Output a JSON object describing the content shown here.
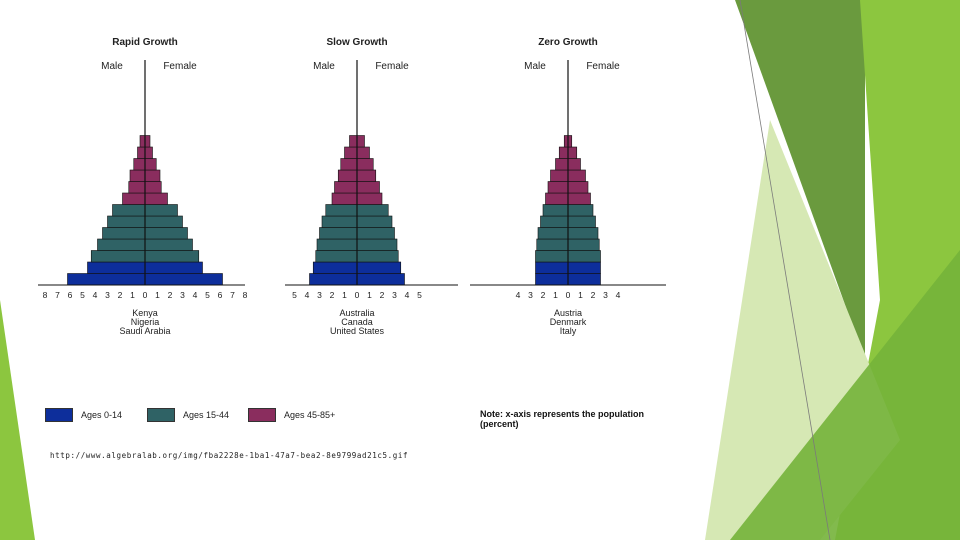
{
  "chart_data": [
    {
      "type": "bar",
      "title": "Rapid Growth",
      "left_label": "Male",
      "right_label": "Female",
      "country_labels": [
        "Kenya",
        "Nigeria",
        "Saudi Arabia"
      ],
      "xlim": [
        -8,
        8
      ],
      "xticks": [
        "8",
        "7",
        "6",
        "5",
        "4",
        "3",
        "2",
        "1",
        "0",
        "1",
        "2",
        "3",
        "4",
        "5",
        "6",
        "7",
        "8"
      ],
      "series": [
        {
          "name": "Male",
          "values": [
            6.2,
            4.6,
            4.3,
            3.8,
            3.4,
            3.0,
            2.6,
            1.8,
            1.3,
            1.2,
            0.9,
            0.6,
            0.4
          ]
        },
        {
          "name": "Female",
          "values": [
            6.2,
            4.6,
            4.3,
            3.8,
            3.4,
            3.0,
            2.6,
            1.8,
            1.3,
            1.2,
            0.9,
            0.6,
            0.4
          ]
        }
      ]
    },
    {
      "type": "bar",
      "title": "Slow Growth",
      "left_label": "Male",
      "right_label": "Female",
      "country_labels": [
        "Australia",
        "Canada",
        "United States"
      ],
      "xlim": [
        -5,
        5
      ],
      "xticks": [
        "5",
        "4",
        "3",
        "2",
        "1",
        "0",
        "1",
        "2",
        "3",
        "4",
        "5"
      ],
      "series": [
        {
          "name": "Male",
          "values": [
            3.8,
            3.5,
            3.3,
            3.2,
            3.0,
            2.8,
            2.5,
            2.0,
            1.8,
            1.5,
            1.3,
            1.0,
            0.6
          ]
        },
        {
          "name": "Female",
          "values": [
            3.8,
            3.5,
            3.3,
            3.2,
            3.0,
            2.8,
            2.5,
            2.0,
            1.8,
            1.5,
            1.3,
            1.0,
            0.6
          ]
        }
      ]
    },
    {
      "type": "bar",
      "title": "Zero Growth",
      "left_label": "Male",
      "right_label": "Female",
      "country_labels": [
        "Austria",
        "Denmark",
        "Italy"
      ],
      "xlim": [
        -5,
        5
      ],
      "xticks": [
        "4",
        "3",
        "2",
        "1",
        "0",
        "1",
        "2",
        "3",
        "4"
      ],
      "series": [
        {
          "name": "Male",
          "values": [
            2.6,
            2.6,
            2.6,
            2.5,
            2.4,
            2.2,
            2.0,
            1.8,
            1.6,
            1.4,
            1.0,
            0.7,
            0.3
          ]
        },
        {
          "name": "Female",
          "values": [
            2.6,
            2.6,
            2.6,
            2.5,
            2.4,
            2.2,
            2.0,
            1.8,
            1.6,
            1.4,
            1.0,
            0.7,
            0.3
          ]
        }
      ]
    }
  ],
  "age_group_colors": [
    "#0d2e9b",
    "#0d2e9b",
    "#2f6265",
    "#2f6265",
    "#2f6265",
    "#2f6265",
    "#2f6265",
    "#8a2d5e",
    "#8a2d5e",
    "#8a2d5e",
    "#8a2d5e",
    "#8a2d5e",
    "#8a2d5e"
  ],
  "legend": [
    {
      "label": "Ages 0-14",
      "color": "#0d2e9b"
    },
    {
      "label": "Ages 15-44",
      "color": "#2f6265"
    },
    {
      "label": "Ages 45-85+",
      "color": "#8a2d5e"
    }
  ],
  "note": "Note: x-axis represents the population (percent)",
  "source_url": "http://www.algebralab.org/img/fba2228e-1ba1-47a7-bea2-8e9799ad21c5.gif",
  "theme_colors": {
    "green_dark": "#5a8f2e",
    "green_mid": "#7fba3a",
    "green_light": "#cfe3a9",
    "green_pale": "#e4efcf"
  }
}
